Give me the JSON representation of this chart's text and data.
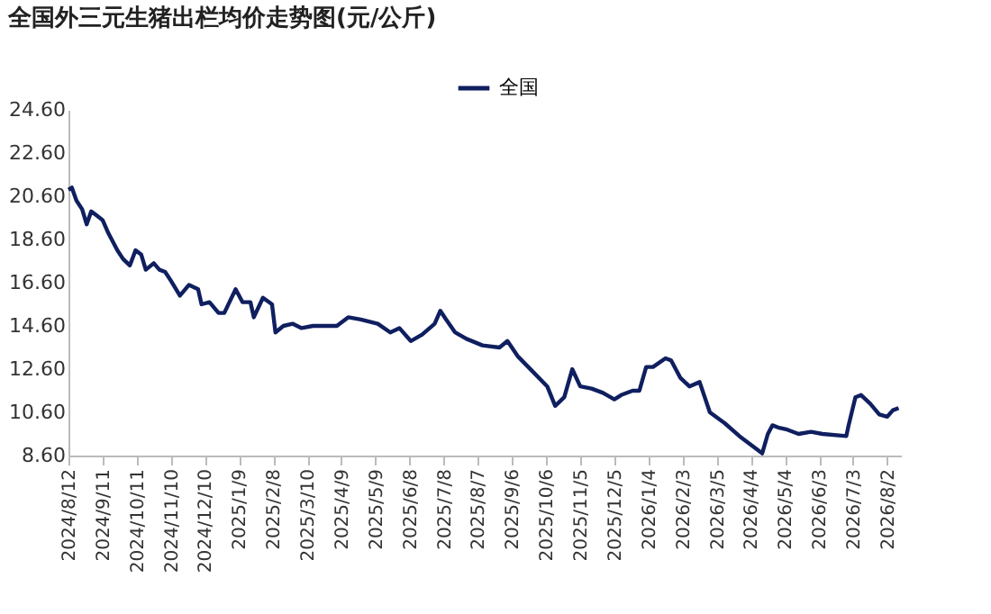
{
  "chart_data": {
    "type": "line",
    "title": "全国外三元生猪出栏均价走势图(元/公斤)",
    "x": [
      "2024-08-12",
      "2024-08-15",
      "2024-08-19",
      "2024-08-24",
      "2024-08-28",
      "2024-09-01",
      "2024-09-06",
      "2024-09-11",
      "2024-09-16",
      "2024-09-24",
      "2024-09-29",
      "2024-10-05",
      "2024-10-10",
      "2024-10-15",
      "2024-10-19",
      "2024-10-26",
      "2024-10-31",
      "2024-11-05",
      "2024-11-10",
      "2024-11-18",
      "2024-11-26",
      "2024-12-04",
      "2024-12-07",
      "2024-12-14",
      "2024-12-22",
      "2024-12-27",
      "2025-01-06",
      "2025-01-12",
      "2025-01-19",
      "2025-01-22",
      "2025-01-30",
      "2025-02-07",
      "2025-02-10",
      "2025-02-17",
      "2025-02-25",
      "2025-03-05",
      "2025-03-15",
      "2025-03-25",
      "2025-04-05",
      "2025-04-15",
      "2025-04-26",
      "2025-05-11",
      "2025-05-22",
      "2025-05-30",
      "2025-06-09",
      "2025-06-19",
      "2025-06-30",
      "2025-07-05",
      "2025-07-10",
      "2025-07-18",
      "2025-07-28",
      "2025-08-11",
      "2025-08-26",
      "2025-09-02",
      "2025-09-11",
      "2025-09-24",
      "2025-10-07",
      "2025-10-14",
      "2025-10-22",
      "2025-10-29",
      "2025-11-05",
      "2025-11-15",
      "2025-11-25",
      "2025-12-05",
      "2025-12-11",
      "2025-12-21",
      "2025-12-27",
      "2026-01-02",
      "2026-01-08",
      "2026-01-19",
      "2026-01-24",
      "2026-02-01",
      "2026-02-09",
      "2026-02-18",
      "2026-02-27",
      "2026-03-12",
      "2026-03-25",
      "2026-04-04",
      "2026-04-14",
      "2026-04-19",
      "2026-04-23",
      "2026-04-28",
      "2026-05-06",
      "2026-05-16",
      "2026-05-27",
      "2026-06-06",
      "2026-06-27",
      "2026-06-29",
      "2026-07-05",
      "2026-07-10",
      "2026-07-18",
      "2026-07-26",
      "2026-08-02",
      "2026-08-07",
      "2026-08-12"
    ],
    "series": [
      {
        "name": "全国",
        "color": "#0f1f5f",
        "values": [
          20.9,
          21.0,
          20.4,
          20.0,
          19.3,
          19.9,
          19.7,
          19.5,
          18.9,
          18.1,
          17.7,
          17.4,
          18.1,
          17.9,
          17.2,
          17.5,
          17.2,
          17.1,
          16.7,
          16.0,
          16.5,
          16.3,
          15.6,
          15.7,
          15.2,
          15.2,
          16.3,
          15.7,
          15.7,
          15.0,
          15.9,
          15.6,
          14.3,
          14.6,
          14.7,
          14.5,
          14.6,
          14.6,
          14.6,
          15.0,
          14.9,
          14.7,
          14.3,
          14.5,
          13.9,
          14.2,
          14.7,
          15.3,
          14.9,
          14.3,
          14.0,
          13.7,
          13.6,
          13.9,
          13.2,
          12.5,
          11.8,
          10.9,
          11.3,
          12.6,
          11.8,
          11.7,
          11.5,
          11.2,
          11.4,
          11.6,
          11.6,
          12.7,
          12.7,
          13.1,
          13.0,
          12.2,
          11.8,
          12.0,
          10.6,
          10.1,
          9.5,
          9.1,
          8.7,
          9.6,
          10.0,
          9.9,
          9.8,
          9.6,
          9.7,
          9.6,
          9.5,
          10.0,
          11.3,
          11.4,
          11.0,
          10.5,
          10.4,
          10.7,
          10.8
        ]
      }
    ],
    "xlim": [
      "2024-08-12",
      "2026-08-14"
    ],
    "xticks": [
      {
        "value": "2024-08-12",
        "label": "2024/8/12"
      },
      {
        "value": "2024-09-11",
        "label": "2024/9/11"
      },
      {
        "value": "2024-10-11",
        "label": "2024/10/11"
      },
      {
        "value": "2024-11-10",
        "label": "2024/11/10"
      },
      {
        "value": "2024-12-10",
        "label": "2024/12/10"
      },
      {
        "value": "2025-01-09",
        "label": "2025/1/9"
      },
      {
        "value": "2025-02-08",
        "label": "2025/2/8"
      },
      {
        "value": "2025-03-10",
        "label": "2025/3/10"
      },
      {
        "value": "2025-04-09",
        "label": "2025/4/9"
      },
      {
        "value": "2025-05-09",
        "label": "2025/5/9"
      },
      {
        "value": "2025-06-08",
        "label": "2025/6/8"
      },
      {
        "value": "2025-07-08",
        "label": "2025/7/8"
      },
      {
        "value": "2025-08-07",
        "label": "2025/8/7"
      },
      {
        "value": "2025-09-06",
        "label": "2025/9/6"
      },
      {
        "value": "2025-10-06",
        "label": "2025/10/6"
      },
      {
        "value": "2025-11-05",
        "label": "2025/11/5"
      },
      {
        "value": "2025-12-05",
        "label": "2025/12/5"
      },
      {
        "value": "2026-01-04",
        "label": "2026/1/4"
      },
      {
        "value": "2026-02-03",
        "label": "2026/2/3"
      },
      {
        "value": "2026-03-05",
        "label": "2026/3/5"
      },
      {
        "value": "2026-04-04",
        "label": "2026/4/4"
      },
      {
        "value": "2026-05-04",
        "label": "2026/5/4"
      },
      {
        "value": "2026-06-03",
        "label": "2026/6/3"
      },
      {
        "value": "2026-07-03",
        "label": "2026/7/3"
      },
      {
        "value": "2026-08-02",
        "label": "2026/8/2"
      }
    ],
    "ylim": [
      8.6,
      24.6
    ],
    "yticks": [
      {
        "value": 8.6,
        "label": "8.60"
      },
      {
        "value": 10.6,
        "label": "10.60"
      },
      {
        "value": 12.6,
        "label": "12.60"
      },
      {
        "value": 14.6,
        "label": "14.60"
      },
      {
        "value": 16.6,
        "label": "16.60"
      },
      {
        "value": 18.6,
        "label": "18.60"
      },
      {
        "value": 20.6,
        "label": "20.60"
      },
      {
        "value": 22.6,
        "label": "22.60"
      },
      {
        "value": 24.6,
        "label": "24.60"
      }
    ],
    "grid": false,
    "legend": "top",
    "marker": "none",
    "line_style": "solid"
  }
}
